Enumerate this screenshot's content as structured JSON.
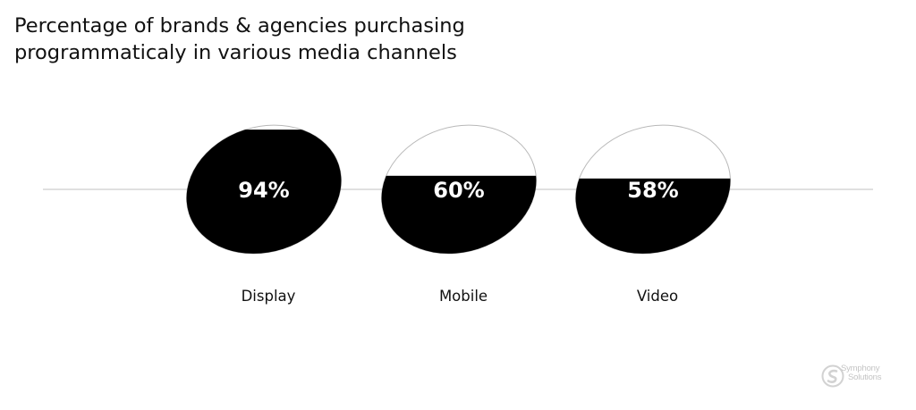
{
  "title_lines": [
    "Percentage of brands & agencies purchasing",
    "programmaticaly in various media channels"
  ],
  "colors": {
    "fill": "#000000",
    "outline": "#b8b8b8",
    "baseline": "#d6d6d6",
    "value_text": "#ffffff",
    "label_text": "#111111",
    "logo": "#cfcfcf"
  },
  "logo": {
    "line1": "Symphony",
    "line2": "Solutions",
    "icon": "symphony-swirl-icon"
  },
  "chart_data": {
    "type": "bar",
    "categories": [
      "Display",
      "Mobile",
      "Video"
    ],
    "values": [
      94,
      60,
      58
    ],
    "value_labels": [
      "94%",
      "60%",
      "58%"
    ],
    "ylim": [
      0,
      100
    ],
    "title": "Percentage of brands & agencies purchasing programmaticaly in various media channels",
    "xlabel": "",
    "ylabel": "",
    "legend": "none",
    "grid": false
  }
}
